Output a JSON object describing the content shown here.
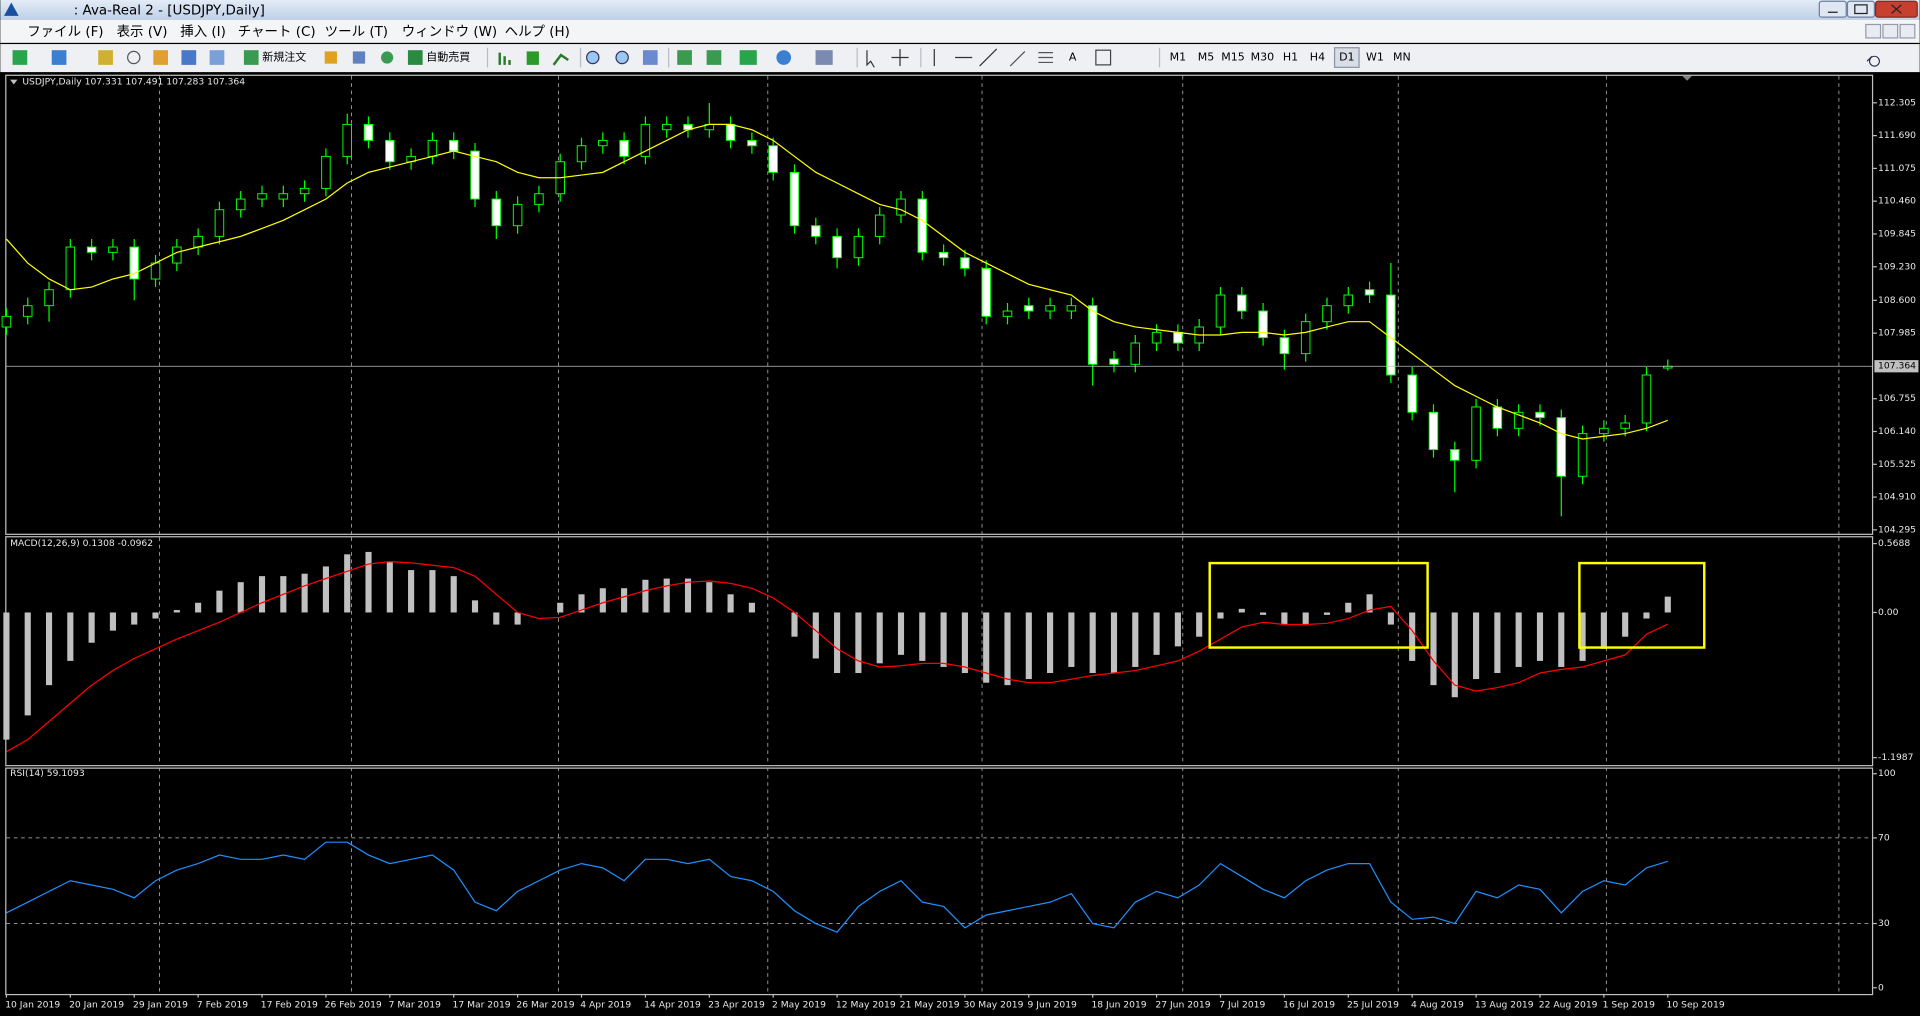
{
  "window": {
    "title": ": Ava-Real 2 - [USDJPY,Daily]",
    "menu": [
      "ファイル (F)",
      "表示 (V)",
      "挿入 (I)",
      "チャート (C)",
      "ツール (T)",
      "ウィンドウ (W)",
      "ヘルプ (H)"
    ],
    "toolbar": {
      "new_order": "新規注文",
      "auto_trading": "自動売買",
      "timeframes": [
        "M1",
        "M5",
        "M15",
        "M30",
        "H1",
        "H4",
        "D1",
        "W1",
        "MN"
      ]
    }
  },
  "chart_data": [
    {
      "type": "candlestick",
      "title": "USDJPY,Daily  107.331 107.491 107.283 107.364",
      "categories": [
        "10 Jan 2019",
        null,
        null,
        "20 Jan 2019",
        null,
        null,
        "29 Jan 2019",
        null,
        null,
        "7 Feb 2019",
        null,
        null,
        "17 Feb 2019",
        null,
        null,
        "26 Feb 2019",
        null,
        null,
        "7 Mar 2019",
        null,
        null,
        "17 Mar 2019",
        null,
        null,
        "26 Mar 2019",
        null,
        null,
        "4 Apr 2019",
        null,
        null,
        "14 Apr 2019",
        null,
        null,
        "23 Apr 2019",
        null,
        null,
        "2 May 2019",
        null,
        null,
        "12 May 2019",
        null,
        null,
        "21 May 2019",
        null,
        null,
        "30 May 2019",
        null,
        null,
        "9 Jun 2019",
        null,
        null,
        "18 Jun 2019",
        null,
        null,
        "27 Jun 2019",
        null,
        null,
        "7 Jul 2019",
        null,
        null,
        "16 Jul 2019",
        null,
        null,
        "25 Jul 2019",
        null,
        null,
        "4 Aug 2019",
        null,
        null,
        "13 Aug 2019",
        null,
        null,
        "22 Aug 2019",
        null,
        null,
        "1 Sep 2019",
        null,
        null,
        "10 Sep 2019"
      ],
      "open": [
        108.1,
        108.3,
        108.5,
        108.8,
        109.6,
        109.5,
        109.6,
        109.0,
        109.3,
        109.6,
        109.8,
        110.3,
        110.5,
        110.5,
        110.6,
        110.7,
        111.3,
        111.9,
        111.6,
        111.2,
        111.3,
        111.6,
        111.4,
        110.5,
        110.0,
        110.4,
        110.6,
        111.2,
        111.5,
        111.6,
        111.3,
        111.8,
        111.9,
        111.8,
        111.9,
        111.6,
        111.5,
        111.0,
        110.0,
        109.8,
        109.4,
        109.8,
        110.2,
        110.5,
        109.5,
        109.4,
        109.2,
        108.3,
        108.5,
        108.4,
        108.4,
        108.5,
        107.5,
        107.4,
        107.8,
        108.0,
        107.8,
        108.1,
        108.7,
        108.4,
        107.9,
        107.6,
        108.2,
        108.5,
        108.8,
        108.7,
        107.2,
        106.5,
        105.8,
        105.6,
        106.6,
        106.2,
        106.5,
        106.4,
        105.3,
        106.1,
        106.2,
        106.3,
        107.331
      ],
      "high": [
        108.45,
        108.65,
        108.95,
        109.75,
        109.75,
        109.75,
        109.75,
        109.45,
        109.75,
        109.95,
        110.45,
        110.65,
        110.75,
        110.75,
        110.85,
        111.45,
        112.1,
        112.05,
        111.75,
        111.45,
        111.75,
        111.75,
        111.55,
        110.65,
        110.55,
        110.75,
        111.35,
        111.65,
        111.75,
        111.75,
        112.05,
        112.05,
        112.05,
        112.3,
        112.05,
        111.75,
        111.65,
        111.15,
        110.15,
        109.95,
        109.95,
        110.35,
        110.65,
        110.65,
        109.65,
        109.55,
        109.35,
        108.55,
        108.65,
        108.65,
        108.65,
        108.65,
        107.65,
        107.95,
        108.15,
        108.15,
        108.25,
        108.85,
        108.85,
        108.55,
        108.05,
        108.35,
        108.65,
        108.85,
        108.95,
        109.3,
        107.35,
        106.65,
        105.95,
        106.75,
        106.75,
        106.65,
        106.65,
        106.55,
        106.25,
        106.35,
        106.45,
        107.35,
        107.491
      ],
      "low": [
        107.95,
        108.15,
        108.2,
        108.65,
        109.35,
        109.35,
        108.6,
        108.85,
        109.15,
        109.45,
        109.65,
        110.15,
        110.35,
        110.35,
        110.45,
        110.55,
        111.15,
        111.45,
        111.05,
        111.05,
        111.15,
        111.25,
        110.35,
        109.75,
        109.85,
        110.25,
        110.45,
        111.05,
        111.35,
        111.15,
        111.15,
        111.65,
        111.65,
        111.65,
        111.45,
        111.35,
        110.85,
        109.85,
        109.65,
        109.2,
        109.25,
        109.65,
        110.05,
        109.35,
        109.25,
        109.05,
        108.15,
        108.15,
        108.25,
        108.25,
        108.25,
        107.0,
        107.25,
        107.25,
        107.65,
        107.65,
        107.65,
        107.95,
        108.25,
        107.75,
        107.3,
        107.45,
        108.05,
        108.35,
        108.55,
        107.05,
        106.35,
        105.65,
        105.0,
        105.45,
        106.05,
        106.05,
        106.25,
        104.55,
        105.15,
        105.95,
        106.05,
        106.15,
        107.283
      ],
      "close": [
        108.3,
        108.5,
        108.8,
        109.6,
        109.5,
        109.6,
        109.0,
        109.3,
        109.6,
        109.8,
        110.3,
        110.5,
        110.6,
        110.6,
        110.7,
        111.3,
        111.9,
        111.6,
        111.2,
        111.3,
        111.6,
        111.4,
        110.5,
        110.0,
        110.4,
        110.6,
        111.2,
        111.5,
        111.6,
        111.3,
        111.9,
        111.9,
        111.8,
        111.9,
        111.6,
        111.5,
        111.0,
        110.0,
        109.8,
        109.4,
        109.8,
        110.2,
        110.5,
        109.5,
        109.4,
        109.2,
        108.3,
        108.4,
        108.4,
        108.5,
        108.5,
        107.4,
        107.4,
        107.8,
        108.0,
        107.8,
        108.1,
        108.7,
        108.4,
        107.9,
        107.6,
        108.2,
        108.5,
        108.7,
        108.7,
        107.2,
        106.5,
        105.8,
        105.6,
        106.6,
        106.2,
        106.5,
        106.4,
        105.3,
        106.1,
        106.2,
        106.3,
        107.2,
        107.364
      ],
      "ma": {
        "color": "#ffff00",
        "values": [
          109.75,
          109.3,
          109.0,
          108.8,
          108.85,
          109.0,
          109.1,
          109.3,
          109.5,
          109.6,
          109.7,
          109.8,
          109.95,
          110.1,
          110.3,
          110.5,
          110.8,
          111.0,
          111.1,
          111.2,
          111.3,
          111.4,
          111.3,
          111.2,
          111.0,
          110.9,
          110.9,
          110.95,
          111.0,
          111.2,
          111.4,
          111.6,
          111.8,
          111.9,
          111.9,
          111.8,
          111.6,
          111.3,
          111.0,
          110.8,
          110.6,
          110.4,
          110.3,
          110.1,
          109.8,
          109.5,
          109.3,
          109.1,
          108.9,
          108.8,
          108.7,
          108.4,
          108.2,
          108.1,
          108.05,
          108.0,
          107.95,
          107.95,
          108.0,
          108.0,
          107.95,
          108.0,
          108.1,
          108.2,
          108.2,
          107.9,
          107.6,
          107.3,
          107.0,
          106.8,
          106.6,
          106.45,
          106.3,
          106.1,
          106.0,
          106.05,
          106.1,
          106.2,
          106.35
        ]
      },
      "candle_color": "#00ff00",
      "bull_fill": "#000000",
      "bear_fill": "#ffffff",
      "price_line_color": "#c0c0c0",
      "ylim": [
        104.2,
        112.81
      ],
      "yticks": [
        112.305,
        {
          "value": 111.69,
          "label": "111.690"
        },
        111.075,
        {
          "value": 110.46,
          "label": "110.460"
        },
        109.845,
        {
          "value": 109.23,
          "label": "109.230"
        },
        {
          "value": 108.6,
          "label": "108.600"
        },
        107.985,
        106.755,
        {
          "value": 106.14,
          "label": "106.140"
        },
        105.525,
        {
          "value": 104.91,
          "label": "104.910"
        },
        104.295
      ]
    },
    {
      "type": "macd",
      "title": "MACD(12,26,9) 0.1308 -0.0962",
      "histogram": {
        "color": "#c0c0c0",
        "values": [
          -1.05,
          -0.85,
          -0.6,
          -0.4,
          -0.25,
          -0.15,
          -0.1,
          -0.05,
          0.02,
          0.08,
          0.18,
          0.25,
          0.3,
          0.3,
          0.32,
          0.38,
          0.48,
          0.5,
          0.42,
          0.35,
          0.35,
          0.3,
          0.1,
          -0.1,
          -0.1,
          0,
          0.08,
          0.15,
          0.2,
          0.2,
          0.27,
          0.28,
          0.28,
          0.25,
          0.15,
          0.08,
          0,
          -0.2,
          -0.38,
          -0.5,
          -0.5,
          -0.42,
          -0.35,
          -0.4,
          -0.45,
          -0.5,
          -0.58,
          -0.6,
          -0.55,
          -0.5,
          -0.45,
          -0.5,
          -0.5,
          -0.45,
          -0.35,
          -0.28,
          -0.2,
          -0.05,
          0.03,
          -0.02,
          -0.1,
          -0.1,
          -0.02,
          0.08,
          0.15,
          -0.1,
          -0.4,
          -0.6,
          -0.7,
          -0.55,
          -0.5,
          -0.45,
          -0.4,
          -0.45,
          -0.4,
          -0.3,
          -0.2,
          -0.05,
          0.1308
        ]
      },
      "signal": {
        "color": "#ff0000",
        "values": [
          -1.15,
          -1.05,
          -0.9,
          -0.75,
          -0.6,
          -0.48,
          -0.38,
          -0.3,
          -0.22,
          -0.15,
          -0.08,
          0,
          0.08,
          0.15,
          0.22,
          0.28,
          0.34,
          0.4,
          0.42,
          0.41,
          0.39,
          0.37,
          0.3,
          0.15,
          0,
          -0.05,
          -0.04,
          0.02,
          0.08,
          0.13,
          0.18,
          0.22,
          0.25,
          0.26,
          0.24,
          0.2,
          0.12,
          0,
          -0.15,
          -0.3,
          -0.4,
          -0.45,
          -0.44,
          -0.42,
          -0.42,
          -0.45,
          -0.5,
          -0.55,
          -0.58,
          -0.58,
          -0.55,
          -0.52,
          -0.5,
          -0.48,
          -0.44,
          -0.4,
          -0.32,
          -0.22,
          -0.12,
          -0.08,
          -0.1,
          -0.1,
          -0.09,
          -0.05,
          0.02,
          0.05,
          -0.15,
          -0.4,
          -0.6,
          -0.65,
          -0.62,
          -0.58,
          -0.5,
          -0.47,
          -0.45,
          -0.4,
          -0.35,
          -0.18,
          -0.0962
        ]
      },
      "ylim": [
        -1.26,
        0.62
      ],
      "yticks": [
        0.5688,
        {
          "value": 0,
          "label": "0.00"
        },
        -1.1987
      ]
    },
    {
      "type": "rsi",
      "title": "RSI(14) 59.1093",
      "color": "#1e90ff",
      "values": [
        35,
        40,
        45,
        50,
        48,
        46,
        42,
        50,
        55,
        58,
        62,
        60,
        60,
        62,
        60,
        68,
        68,
        62,
        58,
        60,
        62,
        55,
        40,
        36,
        45,
        50,
        55,
        58,
        56,
        50,
        60,
        60,
        58,
        60,
        52,
        50,
        45,
        36,
        30,
        26,
        38,
        45,
        50,
        40,
        38,
        28,
        34,
        36,
        38,
        40,
        44,
        30,
        28,
        40,
        45,
        42,
        48,
        58,
        52,
        46,
        42,
        50,
        55,
        58,
        58,
        40,
        32,
        33,
        30,
        45,
        42,
        48,
        46,
        35,
        45,
        50,
        48,
        56,
        59.1093
      ],
      "ylim": [
        -2.9,
        102.9
      ],
      "yticks": [
        100,
        70,
        30,
        0
      ],
      "levels": [
        30,
        70
      ]
    }
  ]
}
